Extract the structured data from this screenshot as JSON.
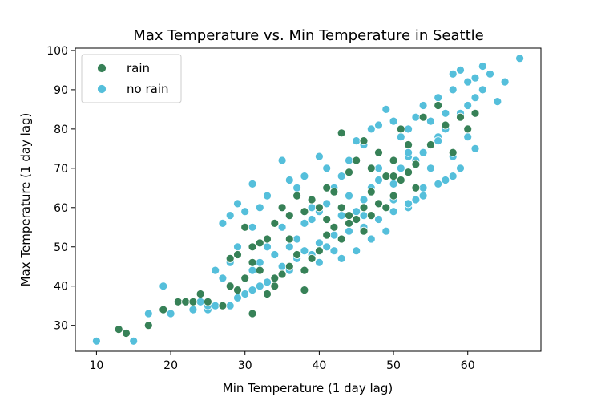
{
  "chart_data": {
    "type": "scatter",
    "title": "Max Temperature vs. Min Temperature in Seattle",
    "xlabel": "Min Temperature (1 day lag)",
    "ylabel": "Max Temperature (1 day lag)",
    "xlim": [
      7.15,
      69.85
    ],
    "ylim": [
      23.4,
      100.6
    ],
    "xticks": [
      10,
      20,
      30,
      40,
      50,
      60
    ],
    "yticks": [
      30,
      40,
      50,
      60,
      70,
      80,
      90,
      100
    ],
    "grid": false,
    "legend_position": "top-left",
    "series": [
      {
        "name": "no rain",
        "color": "#55bfdb",
        "x": [
          10,
          15,
          17,
          19,
          20,
          24,
          25,
          26,
          27,
          27,
          28,
          28,
          29,
          29,
          30,
          31,
          31,
          32,
          32,
          33,
          33,
          34,
          35,
          35,
          36,
          36,
          37,
          37,
          38,
          38,
          39,
          39,
          40,
          40,
          40,
          41,
          41,
          42,
          42,
          43,
          43,
          44,
          44,
          45,
          45,
          46,
          46,
          47,
          47,
          48,
          48,
          49,
          49,
          50,
          50,
          51,
          51,
          52,
          52,
          53,
          53,
          54,
          54,
          55,
          55,
          56,
          56,
          57,
          57,
          58,
          58,
          59,
          59,
          60,
          60,
          61,
          61,
          62,
          62,
          63,
          64,
          65,
          67,
          55,
          58,
          60,
          49,
          52,
          56,
          53,
          47,
          45,
          43,
          40,
          36,
          34,
          32,
          30,
          29,
          28,
          26,
          25,
          23,
          31,
          33,
          35,
          37,
          39,
          41,
          44,
          46,
          48,
          50,
          52,
          54,
          57,
          59,
          61,
          42,
          38,
          46,
          50,
          54,
          58,
          44,
          48,
          52,
          56,
          39,
          35,
          31
        ],
        "y": [
          26,
          26,
          33,
          40,
          33,
          36,
          34,
          44,
          42,
          56,
          46,
          58,
          50,
          61,
          59,
          44,
          66,
          46,
          60,
          50,
          63,
          48,
          55,
          72,
          50,
          67,
          52,
          65,
          56,
          68,
          57,
          60,
          59,
          73,
          51,
          61,
          70,
          49,
          65,
          58,
          68,
          56,
          72,
          59,
          77,
          62,
          76,
          65,
          80,
          67,
          81,
          68,
          85,
          66,
          82,
          70,
          78,
          73,
          80,
          72,
          83,
          74,
          86,
          76,
          82,
          78,
          88,
          80,
          84,
          90,
          94,
          84,
          95,
          86,
          92,
          88,
          93,
          96,
          90,
          94,
          87,
          92,
          98,
          70,
          73,
          78,
          54,
          60,
          66,
          62,
          52,
          49,
          47,
          46,
          44,
          42,
          40,
          38,
          37,
          35,
          35,
          35,
          34,
          39,
          41,
          45,
          47,
          48,
          50,
          54,
          55,
          57,
          59,
          61,
          63,
          67,
          70,
          75,
          53,
          49,
          58,
          62,
          65,
          68,
          63,
          70,
          74,
          77,
          62,
          60,
          55
        ]
      },
      {
        "name": "rain",
        "color": "#378157",
        "x": [
          13,
          14,
          17,
          19,
          21,
          22,
          23,
          24,
          25,
          27,
          28,
          28,
          29,
          30,
          30,
          31,
          31,
          32,
          32,
          33,
          33,
          34,
          34,
          35,
          35,
          36,
          36,
          37,
          37,
          38,
          38,
          39,
          39,
          40,
          40,
          41,
          41,
          42,
          42,
          43,
          43,
          44,
          44,
          45,
          45,
          46,
          46,
          47,
          47,
          48,
          48,
          49,
          49,
          50,
          50,
          51,
          51,
          52,
          52,
          53,
          54,
          55,
          56,
          57,
          58,
          59,
          60,
          61,
          43,
          46,
          31,
          34,
          38,
          41,
          47,
          50,
          53,
          29,
          36,
          44
        ],
        "y": [
          29,
          28,
          30,
          34,
          36,
          36,
          36,
          38,
          36,
          35,
          40,
          47,
          39,
          55,
          42,
          33,
          46,
          44,
          51,
          38,
          52,
          40,
          56,
          43,
          60,
          45,
          58,
          48,
          63,
          44,
          59,
          47,
          62,
          49,
          60,
          53,
          65,
          55,
          64,
          52,
          79,
          56,
          69,
          57,
          72,
          60,
          77,
          58,
          70,
          61,
          74,
          60,
          68,
          63,
          72,
          67,
          80,
          69,
          76,
          71,
          83,
          76,
          86,
          81,
          74,
          83,
          80,
          84,
          60,
          54,
          50,
          42,
          39,
          57,
          64,
          68,
          65,
          48,
          52,
          58
        ]
      }
    ]
  }
}
